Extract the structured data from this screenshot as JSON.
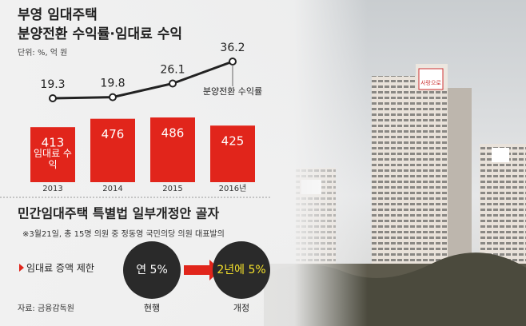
{
  "chart_data": {
    "type": "bar",
    "title": [
      "부영 임대주택",
      "분양전환 수익률·임대료 수익"
    ],
    "unit": "단위: %, 억 원",
    "categories": [
      "2013",
      "2014",
      "2015",
      "2016년"
    ],
    "series": [
      {
        "name": "임대료 수익",
        "type": "bar",
        "color": "#e1251b",
        "values": [
          413,
          476,
          486,
          425
        ]
      },
      {
        "name": "분양전환 수익률",
        "type": "line",
        "color": "#222222",
        "values": [
          19.3,
          19.8,
          26.1,
          36.2
        ]
      }
    ]
  },
  "proposal": {
    "title": "민간임대주택 특별법 일부개정안 골자",
    "note": "※3월21일, 총 15명 의원 중 정동영 국민의당 의원 대표발의",
    "item": "임대료 증액 제한",
    "current": {
      "text": "연 5%",
      "label": "현행"
    },
    "revised": {
      "text": "2년에 5%",
      "label": "개정"
    }
  },
  "source": "자료: 금융감독원",
  "photo": {
    "sign": "사랑으로"
  }
}
